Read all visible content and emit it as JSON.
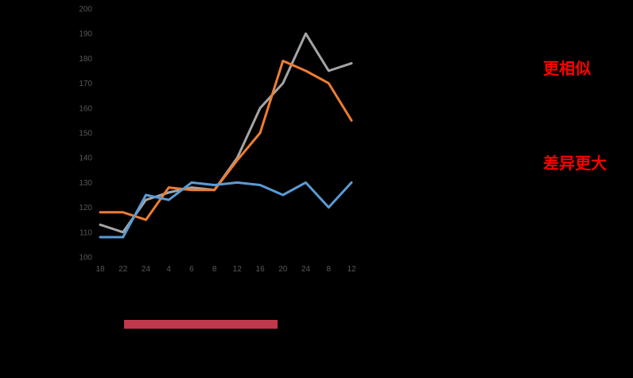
{
  "chart_data": {
    "type": "line",
    "categories": [
      "18",
      "22",
      "24",
      "4",
      "6",
      "8",
      "12",
      "16",
      "20",
      "24",
      "8",
      "12"
    ],
    "ylim": [
      100,
      200
    ],
    "yticks": [
      100,
      110,
      120,
      130,
      140,
      150,
      160,
      170,
      180,
      190,
      200
    ],
    "grid": false,
    "series": [
      {
        "color": "#A5A5A5",
        "values": [
          113,
          110,
          123,
          126,
          128,
          127,
          140,
          160,
          170,
          190,
          175,
          178
        ]
      },
      {
        "color": "#ED7D31",
        "values": [
          118,
          118,
          115,
          128,
          127,
          127,
          139,
          150,
          179,
          175,
          170,
          155
        ]
      },
      {
        "color": "#5B9BD5",
        "values": [
          108,
          108,
          125,
          123,
          130,
          129,
          130,
          129,
          125,
          130,
          120,
          130
        ]
      }
    ],
    "annotations": [
      {
        "text": "更相似",
        "color": "#FF0000"
      },
      {
        "text": "差异更大",
        "color": "#FF0000"
      }
    ]
  },
  "colors": {
    "background": "#000000",
    "tick_label": "#595959",
    "annotation": "#FF0000",
    "timeline_bar": "#C0394B"
  }
}
